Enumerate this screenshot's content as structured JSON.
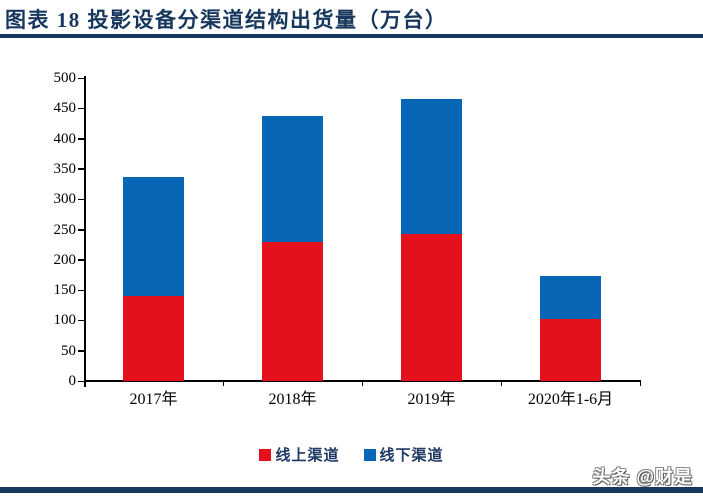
{
  "figure": {
    "title": "图表 18  投影设备分渠道结构出货量（万台）",
    "watermark": "头条 @财是"
  },
  "colors": {
    "title_navy": "#17375D",
    "rule_navy": "#17375D",
    "online_red": "#E4111D",
    "offline_blue": "#0866B6",
    "axis": "#000000",
    "legend_text": "#1F3864"
  },
  "chart_data": {
    "type": "bar",
    "stacked": true,
    "title": "投影设备分渠道结构出货量（万台）",
    "xlabel": "",
    "ylabel": "",
    "categories": [
      "2017年",
      "2018年",
      "2019年",
      "2020年1-6月"
    ],
    "series": [
      {
        "name": "线上渠道",
        "color": "#E4111D",
        "values": [
          140,
          230,
          242,
          103
        ]
      },
      {
        "name": "线下渠道",
        "color": "#0866B6",
        "values": [
          196,
          208,
          223,
          70
        ]
      }
    ],
    "totals": [
      336,
      438,
      465,
      173
    ],
    "ylim": [
      0,
      500
    ],
    "ytick_step": 50,
    "yticks": [
      0,
      50,
      100,
      150,
      200,
      250,
      300,
      350,
      400,
      450,
      500
    ],
    "grid": false,
    "legend_position": "bottom"
  }
}
